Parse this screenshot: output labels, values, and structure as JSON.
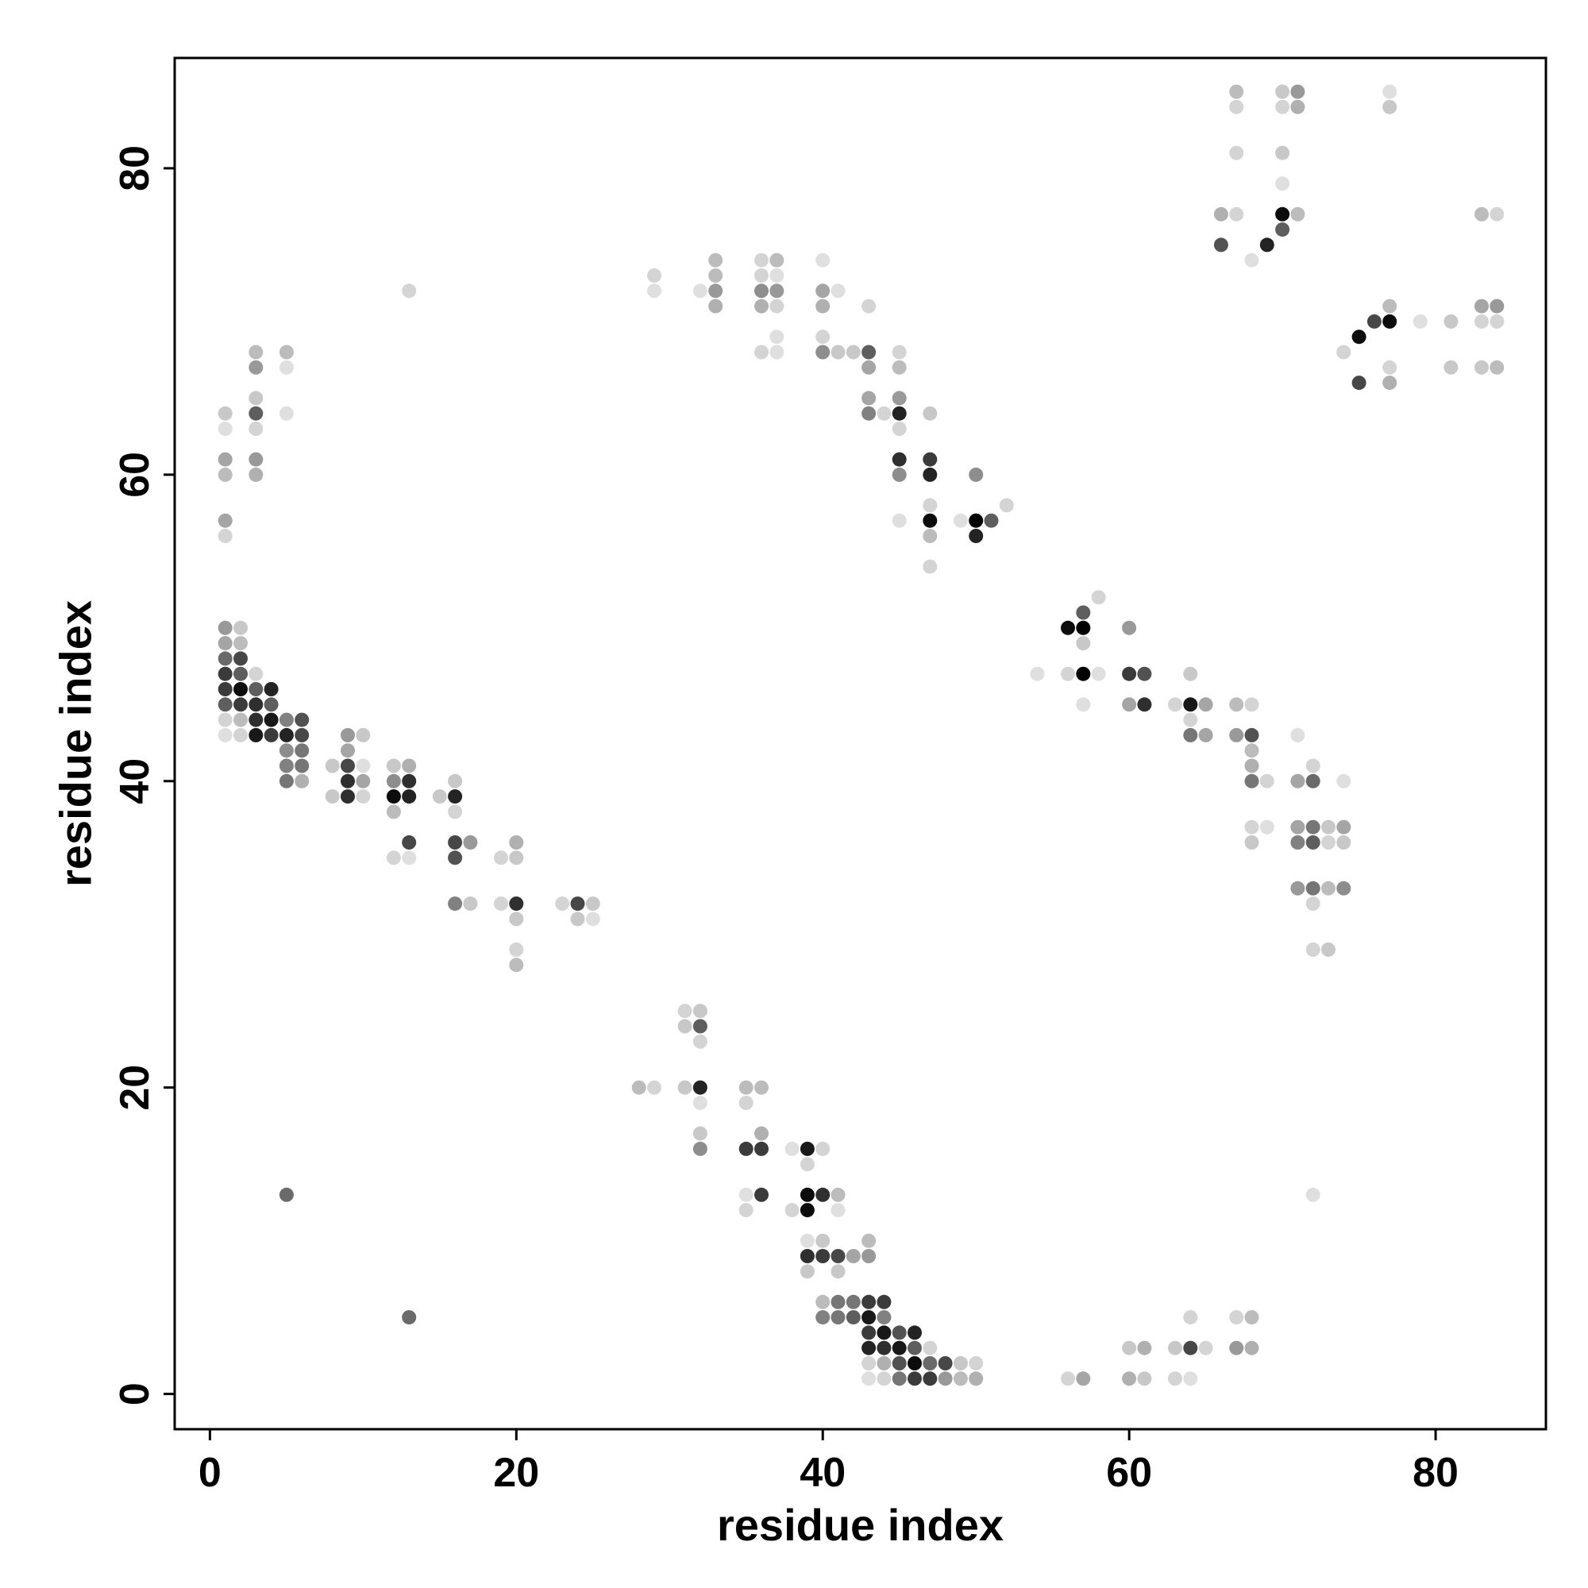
{
  "chart_data": {
    "type": "scatter",
    "title": "",
    "xlabel": "residue index",
    "ylabel": "residue index",
    "xlim": [
      -2.3,
      87.2
    ],
    "ylim": [
      -2.3,
      87.2
    ],
    "xticks": [
      0,
      20,
      40,
      60,
      80
    ],
    "yticks": [
      0,
      20,
      40,
      60,
      80
    ],
    "grid": false,
    "legend": "none",
    "encoding": "point color = contact strength, 0 = light grey, 1 = black",
    "point_color_range": [
      "#ebebeb",
      "#000000"
    ],
    "points": [
      [
        1,
        64,
        0.15
      ],
      [
        1,
        63,
        0.05
      ],
      [
        1,
        61,
        0.3
      ],
      [
        1,
        60,
        0.2
      ],
      [
        1,
        57,
        0.3
      ],
      [
        1,
        56,
        0.1
      ],
      [
        1,
        50,
        0.35
      ],
      [
        1,
        49,
        0.3
      ],
      [
        1,
        48,
        0.55
      ],
      [
        1,
        47,
        0.75
      ],
      [
        1,
        46,
        0.75
      ],
      [
        1,
        45,
        0.6
      ],
      [
        1,
        44,
        0.1
      ],
      [
        1,
        43,
        0.05
      ],
      [
        2,
        50,
        0.15
      ],
      [
        2,
        49,
        0.2
      ],
      [
        2,
        48,
        0.7
      ],
      [
        2,
        47,
        0.6
      ],
      [
        2,
        46,
        0.95
      ],
      [
        2,
        45,
        0.75
      ],
      [
        2,
        44,
        0.2
      ],
      [
        2,
        43,
        0.1
      ],
      [
        3,
        68,
        0.2
      ],
      [
        3,
        67,
        0.35
      ],
      [
        3,
        65,
        0.15
      ],
      [
        3,
        64,
        0.6
      ],
      [
        3,
        63,
        0.1
      ],
      [
        3,
        61,
        0.35
      ],
      [
        3,
        60,
        0.25
      ],
      [
        3,
        47,
        0.1
      ],
      [
        3,
        46,
        0.6
      ],
      [
        3,
        45,
        0.8
      ],
      [
        3,
        44,
        0.8
      ],
      [
        3,
        43,
        0.9
      ],
      [
        4,
        46,
        0.85
      ],
      [
        4,
        45,
        0.6
      ],
      [
        4,
        44,
        0.9
      ],
      [
        4,
        43,
        0.75
      ],
      [
        5,
        68,
        0.2
      ],
      [
        5,
        67,
        0.05
      ],
      [
        5,
        64,
        0.05
      ],
      [
        5,
        44,
        0.45
      ],
      [
        5,
        43,
        0.85
      ],
      [
        5,
        42,
        0.4
      ],
      [
        5,
        41,
        0.45
      ],
      [
        5,
        40,
        0.5
      ],
      [
        5,
        13,
        0.55
      ],
      [
        6,
        44,
        0.65
      ],
      [
        6,
        43,
        0.7
      ],
      [
        6,
        42,
        0.5
      ],
      [
        6,
        41,
        0.5
      ],
      [
        6,
        40,
        0.25
      ],
      [
        8,
        41,
        0.15
      ],
      [
        8,
        39,
        0.15
      ],
      [
        9,
        43,
        0.35
      ],
      [
        9,
        42,
        0.3
      ],
      [
        9,
        41,
        0.7
      ],
      [
        9,
        40,
        0.8
      ],
      [
        9,
        39,
        0.8
      ],
      [
        10,
        43,
        0.15
      ],
      [
        10,
        41,
        0.05
      ],
      [
        10,
        40,
        0.3
      ],
      [
        10,
        39,
        0.1
      ],
      [
        12,
        41,
        0.15
      ],
      [
        12,
        40,
        0.4
      ],
      [
        12,
        39,
        0.95
      ],
      [
        12,
        38,
        0.2
      ],
      [
        12,
        35,
        0.1
      ],
      [
        13,
        72,
        0.1
      ],
      [
        13,
        41,
        0.25
      ],
      [
        13,
        40,
        0.8
      ],
      [
        13,
        39,
        0.85
      ],
      [
        13,
        36,
        0.7
      ],
      [
        13,
        35,
        0.05
      ],
      [
        13,
        5,
        0.55
      ],
      [
        15,
        39,
        0.15
      ],
      [
        16,
        40,
        0.15
      ],
      [
        16,
        39,
        0.85
      ],
      [
        16,
        38,
        0.1
      ],
      [
        16,
        36,
        0.7
      ],
      [
        16,
        35,
        0.65
      ],
      [
        16,
        32,
        0.45
      ],
      [
        17,
        36,
        0.35
      ],
      [
        17,
        32,
        0.15
      ],
      [
        19,
        35,
        0.1
      ],
      [
        19,
        32,
        0.1
      ],
      [
        20,
        36,
        0.25
      ],
      [
        20,
        35,
        0.15
      ],
      [
        20,
        32,
        0.8
      ],
      [
        20,
        31,
        0.15
      ],
      [
        20,
        29,
        0.1
      ],
      [
        20,
        28,
        0.2
      ],
      [
        23,
        32,
        0.1
      ],
      [
        24,
        32,
        0.7
      ],
      [
        24,
        31,
        0.15
      ],
      [
        25,
        32,
        0.15
      ],
      [
        25,
        31,
        0.05
      ],
      [
        28,
        20,
        0.2
      ],
      [
        29,
        73,
        0.1
      ],
      [
        29,
        72,
        0.05
      ],
      [
        29,
        20,
        0.1
      ],
      [
        31,
        25,
        0.1
      ],
      [
        31,
        24,
        0.15
      ],
      [
        31,
        20,
        0.15
      ],
      [
        32,
        72,
        0.05
      ],
      [
        32,
        25,
        0.15
      ],
      [
        32,
        24,
        0.6
      ],
      [
        32,
        23,
        0.1
      ],
      [
        32,
        20,
        0.85
      ],
      [
        32,
        19,
        0.05
      ],
      [
        32,
        17,
        0.15
      ],
      [
        32,
        16,
        0.4
      ],
      [
        33,
        74,
        0.2
      ],
      [
        33,
        73,
        0.2
      ],
      [
        33,
        72,
        0.35
      ],
      [
        33,
        71,
        0.25
      ],
      [
        35,
        20,
        0.2
      ],
      [
        35,
        19,
        0.1
      ],
      [
        35,
        16,
        0.75
      ],
      [
        35,
        13,
        0.05
      ],
      [
        35,
        12,
        0.1
      ],
      [
        36,
        74,
        0.1
      ],
      [
        36,
        73,
        0.1
      ],
      [
        36,
        72,
        0.4
      ],
      [
        36,
        71,
        0.25
      ],
      [
        36,
        68,
        0.1
      ],
      [
        36,
        20,
        0.2
      ],
      [
        36,
        17,
        0.25
      ],
      [
        36,
        16,
        0.75
      ],
      [
        36,
        13,
        0.75
      ],
      [
        37,
        74,
        0.2
      ],
      [
        37,
        73,
        0.05
      ],
      [
        37,
        72,
        0.35
      ],
      [
        37,
        71,
        0.1
      ],
      [
        37,
        69,
        0.05
      ],
      [
        37,
        68,
        0.05
      ],
      [
        38,
        16,
        0.05
      ],
      [
        38,
        12,
        0.1
      ],
      [
        39,
        16,
        0.9
      ],
      [
        39,
        15,
        0.1
      ],
      [
        39,
        13,
        0.95
      ],
      [
        39,
        12,
        0.95
      ],
      [
        39,
        10,
        0.05
      ],
      [
        39,
        9,
        0.8
      ],
      [
        39,
        8,
        0.15
      ],
      [
        40,
        74,
        0.05
      ],
      [
        40,
        72,
        0.3
      ],
      [
        40,
        71,
        0.25
      ],
      [
        40,
        69,
        0.1
      ],
      [
        40,
        68,
        0.4
      ],
      [
        40,
        16,
        0.1
      ],
      [
        40,
        13,
        0.8
      ],
      [
        40,
        10,
        0.15
      ],
      [
        40,
        9,
        0.75
      ],
      [
        40,
        6,
        0.2
      ],
      [
        40,
        5,
        0.45
      ],
      [
        41,
        72,
        0.05
      ],
      [
        41,
        68,
        0.15
      ],
      [
        41,
        13,
        0.2
      ],
      [
        41,
        12,
        0.05
      ],
      [
        41,
        9,
        0.7
      ],
      [
        41,
        8,
        0.15
      ],
      [
        41,
        6,
        0.5
      ],
      [
        41,
        5,
        0.5
      ],
      [
        42,
        68,
        0.15
      ],
      [
        42,
        9,
        0.3
      ],
      [
        42,
        6,
        0.5
      ],
      [
        42,
        5,
        0.6
      ],
      [
        43,
        71,
        0.1
      ],
      [
        43,
        68,
        0.6
      ],
      [
        43,
        67,
        0.3
      ],
      [
        43,
        65,
        0.3
      ],
      [
        43,
        64,
        0.45
      ],
      [
        43,
        10,
        0.2
      ],
      [
        43,
        9,
        0.35
      ],
      [
        43,
        6,
        0.75
      ],
      [
        43,
        5,
        0.9
      ],
      [
        43,
        4,
        0.75
      ],
      [
        43,
        3,
        0.85
      ],
      [
        43,
        2,
        0.1
      ],
      [
        43,
        1,
        0.05
      ],
      [
        44,
        64,
        0.1
      ],
      [
        44,
        6,
        0.75
      ],
      [
        44,
        5,
        0.45
      ],
      [
        44,
        4,
        0.9
      ],
      [
        44,
        3,
        0.8
      ],
      [
        44,
        2,
        0.25
      ],
      [
        44,
        1,
        0.1
      ],
      [
        45,
        68,
        0.1
      ],
      [
        45,
        67,
        0.2
      ],
      [
        45,
        65,
        0.35
      ],
      [
        45,
        64,
        0.85
      ],
      [
        45,
        63,
        0.1
      ],
      [
        45,
        61,
        0.8
      ],
      [
        45,
        60,
        0.4
      ],
      [
        45,
        57,
        0.05
      ],
      [
        45,
        4,
        0.65
      ],
      [
        45,
        3,
        0.9
      ],
      [
        45,
        2,
        0.65
      ],
      [
        45,
        1,
        0.5
      ],
      [
        46,
        4,
        0.85
      ],
      [
        46,
        3,
        0.6
      ],
      [
        46,
        2,
        0.95
      ],
      [
        46,
        1,
        0.75
      ],
      [
        47,
        64,
        0.15
      ],
      [
        47,
        61,
        0.75
      ],
      [
        47,
        60,
        0.85
      ],
      [
        47,
        58,
        0.1
      ],
      [
        47,
        57,
        0.95
      ],
      [
        47,
        56,
        0.2
      ],
      [
        47,
        54,
        0.1
      ],
      [
        47,
        3,
        0.1
      ],
      [
        47,
        2,
        0.55
      ],
      [
        47,
        1,
        0.75
      ],
      [
        48,
        2,
        0.7
      ],
      [
        48,
        1,
        0.35
      ],
      [
        49,
        57,
        0.05
      ],
      [
        49,
        2,
        0.15
      ],
      [
        49,
        1,
        0.2
      ],
      [
        50,
        60,
        0.4
      ],
      [
        50,
        57,
        1.0
      ],
      [
        50,
        56,
        0.85
      ],
      [
        50,
        2,
        0.1
      ],
      [
        50,
        1,
        0.25
      ],
      [
        51,
        57,
        0.6
      ],
      [
        52,
        58,
        0.1
      ],
      [
        54,
        47,
        0.05
      ],
      [
        56,
        50,
        0.95
      ],
      [
        56,
        47,
        0.1
      ],
      [
        56,
        1,
        0.1
      ],
      [
        57,
        51,
        0.6
      ],
      [
        57,
        50,
        1.0
      ],
      [
        57,
        49,
        0.15
      ],
      [
        57,
        47,
        1.0
      ],
      [
        57,
        45,
        0.05
      ],
      [
        57,
        1,
        0.3
      ],
      [
        58,
        52,
        0.1
      ],
      [
        58,
        47,
        0.05
      ],
      [
        60,
        50,
        0.35
      ],
      [
        60,
        47,
        0.75
      ],
      [
        60,
        45,
        0.3
      ],
      [
        60,
        3,
        0.15
      ],
      [
        60,
        1,
        0.25
      ],
      [
        61,
        47,
        0.65
      ],
      [
        61,
        45,
        0.8
      ],
      [
        61,
        3,
        0.25
      ],
      [
        61,
        1,
        0.15
      ],
      [
        63,
        45,
        0.1
      ],
      [
        63,
        3,
        0.15
      ],
      [
        63,
        1,
        0.1
      ],
      [
        64,
        47,
        0.15
      ],
      [
        64,
        45,
        0.9
      ],
      [
        64,
        44,
        0.1
      ],
      [
        64,
        43,
        0.5
      ],
      [
        64,
        5,
        0.1
      ],
      [
        64,
        3,
        0.7
      ],
      [
        64,
        1,
        0.05
      ],
      [
        65,
        45,
        0.3
      ],
      [
        65,
        43,
        0.3
      ],
      [
        65,
        3,
        0.1
      ],
      [
        66,
        77,
        0.25
      ],
      [
        66,
        75,
        0.65
      ],
      [
        67,
        85,
        0.2
      ],
      [
        67,
        84,
        0.1
      ],
      [
        67,
        81,
        0.1
      ],
      [
        67,
        77,
        0.1
      ],
      [
        67,
        45,
        0.2
      ],
      [
        67,
        43,
        0.35
      ],
      [
        67,
        5,
        0.1
      ],
      [
        67,
        3,
        0.35
      ],
      [
        68,
        74,
        0.05
      ],
      [
        68,
        45,
        0.1
      ],
      [
        68,
        43,
        0.65
      ],
      [
        68,
        42,
        0.2
      ],
      [
        68,
        41,
        0.25
      ],
      [
        68,
        40,
        0.5
      ],
      [
        68,
        37,
        0.1
      ],
      [
        68,
        36,
        0.15
      ],
      [
        68,
        5,
        0.2
      ],
      [
        68,
        3,
        0.25
      ],
      [
        69,
        75,
        0.85
      ],
      [
        69,
        40,
        0.1
      ],
      [
        69,
        37,
        0.05
      ],
      [
        70,
        85,
        0.15
      ],
      [
        70,
        84,
        0.1
      ],
      [
        70,
        81,
        0.15
      ],
      [
        70,
        79,
        0.05
      ],
      [
        70,
        77,
        0.95
      ],
      [
        70,
        76,
        0.6
      ],
      [
        71,
        85,
        0.35
      ],
      [
        71,
        84,
        0.25
      ],
      [
        71,
        77,
        0.2
      ],
      [
        71,
        43,
        0.05
      ],
      [
        71,
        40,
        0.3
      ],
      [
        71,
        37,
        0.3
      ],
      [
        71,
        36,
        0.45
      ],
      [
        71,
        33,
        0.35
      ],
      [
        72,
        41,
        0.1
      ],
      [
        72,
        40,
        0.55
      ],
      [
        72,
        37,
        0.5
      ],
      [
        72,
        36,
        0.6
      ],
      [
        72,
        33,
        0.5
      ],
      [
        72,
        32,
        0.1
      ],
      [
        72,
        29,
        0.1
      ],
      [
        72,
        13,
        0.05
      ],
      [
        73,
        37,
        0.15
      ],
      [
        73,
        36,
        0.1
      ],
      [
        73,
        33,
        0.2
      ],
      [
        73,
        29,
        0.15
      ],
      [
        74,
        68,
        0.1
      ],
      [
        74,
        40,
        0.05
      ],
      [
        74,
        37,
        0.3
      ],
      [
        74,
        36,
        0.15
      ],
      [
        74,
        33,
        0.4
      ],
      [
        75,
        69,
        0.95
      ],
      [
        75,
        66,
        0.7
      ],
      [
        76,
        70,
        0.7
      ],
      [
        77,
        85,
        0.05
      ],
      [
        77,
        84,
        0.15
      ],
      [
        77,
        71,
        0.2
      ],
      [
        77,
        70,
        0.95
      ],
      [
        77,
        67,
        0.1
      ],
      [
        77,
        66,
        0.25
      ],
      [
        79,
        70,
        0.05
      ],
      [
        81,
        70,
        0.15
      ],
      [
        81,
        67,
        0.15
      ],
      [
        83,
        77,
        0.2
      ],
      [
        83,
        71,
        0.3
      ],
      [
        83,
        70,
        0.1
      ],
      [
        83,
        67,
        0.15
      ],
      [
        84,
        77,
        0.1
      ],
      [
        84,
        71,
        0.35
      ],
      [
        84,
        70,
        0.1
      ],
      [
        84,
        67,
        0.2
      ]
    ]
  }
}
